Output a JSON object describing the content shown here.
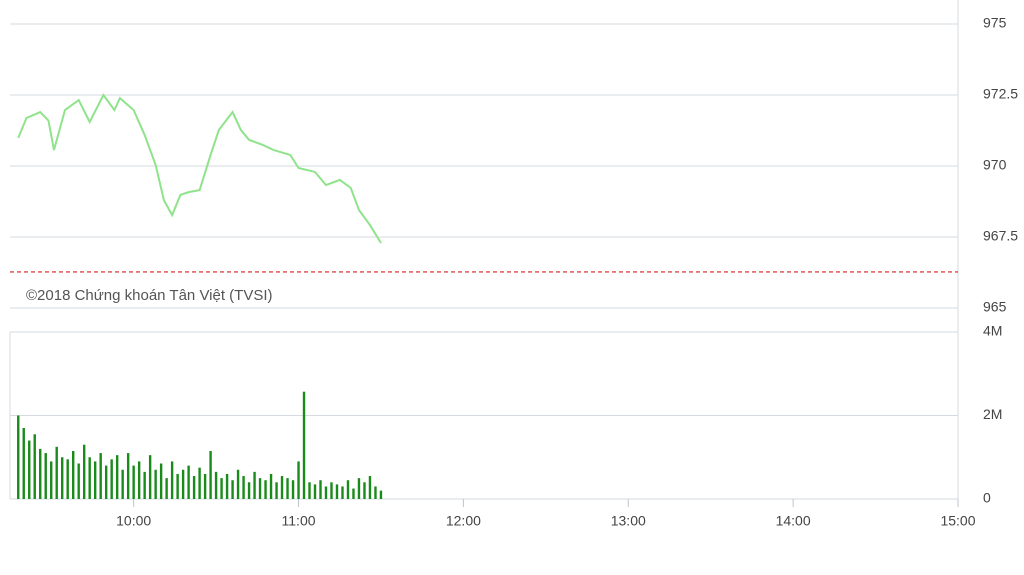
{
  "chart_data": [
    {
      "type": "line",
      "color": "#8fe38a",
      "reference_line": 966.27,
      "reference_color": "#d62020",
      "watermark": "©2018 Chứng khoán Tân Việt (TVSI)",
      "x": [
        558,
        561,
        566,
        569,
        571,
        575,
        580,
        584,
        589,
        593,
        595,
        600,
        604,
        608,
        611,
        614,
        617,
        620,
        624,
        628,
        631,
        636,
        639,
        642,
        647,
        651,
        657,
        660,
        666,
        670,
        675,
        679,
        682,
        686,
        690
      ],
      "values": [
        970.99,
        971.69,
        971.9,
        971.6,
        970.56,
        971.97,
        972.32,
        971.55,
        972.5,
        971.97,
        972.39,
        971.97,
        971.09,
        970.04,
        968.8,
        968.27,
        968.98,
        969.08,
        969.15,
        970.39,
        971.27,
        971.9,
        971.27,
        970.92,
        970.74,
        970.56,
        970.39,
        969.93,
        969.79,
        969.33,
        969.51,
        969.23,
        968.45,
        967.92,
        967.29
      ],
      "xlim": [
        555,
        900
      ],
      "ylim": [
        965,
        975
      ],
      "yticks": [
        965,
        967.5,
        970,
        972.5,
        975
      ]
    },
    {
      "type": "bar",
      "color": "#1a8a1a",
      "x": [
        558,
        560,
        562,
        564,
        566,
        568,
        570,
        572,
        574,
        576,
        578,
        580,
        582,
        584,
        586,
        588,
        590,
        592,
        594,
        596,
        598,
        600,
        602,
        604,
        606,
        608,
        610,
        612,
        614,
        616,
        618,
        620,
        622,
        624,
        626,
        628,
        630,
        632,
        634,
        636,
        638,
        640,
        642,
        644,
        646,
        648,
        650,
        652,
        654,
        656,
        658,
        660,
        662,
        664,
        666,
        668,
        670,
        672,
        674,
        676,
        678,
        680,
        682,
        684,
        686,
        688,
        690
      ],
      "values": [
        2000000,
        1700000,
        1400000,
        1550000,
        1200000,
        1100000,
        900000,
        1250000,
        1000000,
        950000,
        1150000,
        850000,
        1300000,
        1000000,
        900000,
        1100000,
        800000,
        950000,
        1050000,
        700000,
        1100000,
        800000,
        900000,
        650000,
        1050000,
        700000,
        850000,
        500000,
        900000,
        600000,
        700000,
        800000,
        550000,
        750000,
        600000,
        1150000,
        650000,
        500000,
        600000,
        450000,
        700000,
        550000,
        400000,
        650000,
        500000,
        450000,
        600000,
        400000,
        550000,
        500000,
        450000,
        900000,
        2570000,
        400000,
        350000,
        450000,
        300000,
        400000,
        350000,
        300000,
        450000,
        250000,
        500000,
        400000,
        550000,
        300000,
        200000
      ],
      "xlim": [
        555,
        900
      ],
      "ylim": [
        0,
        4000000
      ],
      "yticks": [
        0,
        {
          "value": 2000000,
          "label": "2M"
        },
        {
          "value": 4000000,
          "label": "4M"
        }
      ],
      "xticks": [
        {
          "value": 600,
          "label": "10:00"
        },
        {
          "value": 660,
          "label": "11:00"
        },
        {
          "value": 720,
          "label": "12:00"
        },
        {
          "value": 780,
          "label": "13:00"
        },
        {
          "value": 840,
          "label": "14:00"
        },
        {
          "value": 900,
          "label": "15:00"
        }
      ]
    }
  ]
}
